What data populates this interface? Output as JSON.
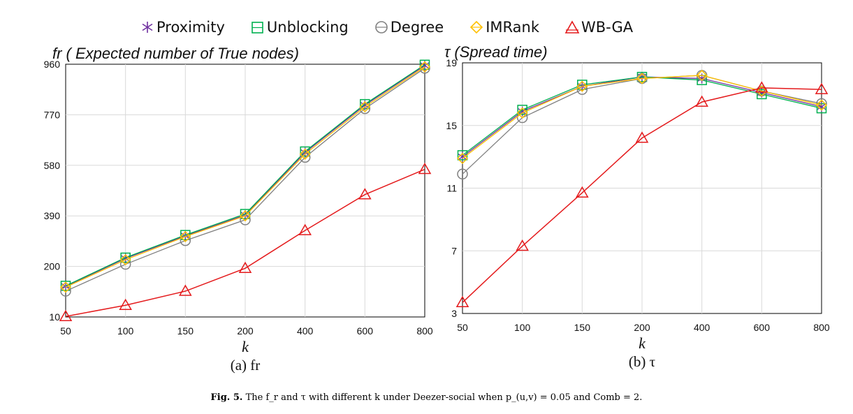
{
  "legend": [
    {
      "label": "Proximity",
      "color": "#7030a0",
      "marker": "asterisk"
    },
    {
      "label": "Unblocking",
      "color": "#00b050",
      "marker": "square"
    },
    {
      "label": "Degree",
      "color": "#808080",
      "marker": "circle"
    },
    {
      "label": "IMRank",
      "color": "#ffc000",
      "marker": "diamond"
    },
    {
      "label": "WB-GA",
      "color": "#e41a1c",
      "marker": "triangle"
    }
  ],
  "caption": {
    "fig_label": "Fig. 5.",
    "text": "The f_r and τ with different k under Deezer-social when p_(u,v) = 0.05 and Comb = 2."
  },
  "chart_data": [
    {
      "type": "line",
      "title": "fr ( Expected number of True nodes)",
      "sublabel": "(a) fr",
      "xlabel": "k",
      "categories": [
        "50",
        "100",
        "150",
        "200",
        "400",
        "600",
        "800"
      ],
      "yticks": [
        10,
        200,
        390,
        580,
        770,
        960
      ],
      "ylim": [
        10,
        960
      ],
      "grid": true,
      "series": [
        {
          "name": "Proximity",
          "values": [
            125,
            230,
            315,
            393,
            628,
            806,
            955
          ]
        },
        {
          "name": "Unblocking",
          "values": [
            127,
            233,
            318,
            397,
            632,
            810,
            958
          ]
        },
        {
          "name": "Degree",
          "values": [
            107,
            208,
            297,
            375,
            610,
            793,
            945
          ]
        },
        {
          "name": "IMRank",
          "values": [
            122,
            225,
            312,
            390,
            622,
            800,
            950
          ]
        },
        {
          "name": "WB-GA",
          "values": [
            12,
            54,
            107,
            193,
            335,
            470,
            565
          ]
        }
      ]
    },
    {
      "type": "line",
      "title": "τ (Spread time)",
      "sublabel": "(b) τ",
      "xlabel": "k",
      "categories": [
        "50",
        "100",
        "150",
        "200",
        "400",
        "600",
        "800"
      ],
      "yticks": [
        3,
        7,
        11,
        15,
        19
      ],
      "ylim": [
        3,
        19
      ],
      "grid": true,
      "series": [
        {
          "name": "Proximity",
          "values": [
            13.0,
            15.9,
            17.5,
            18.1,
            18.0,
            17.1,
            16.2
          ]
        },
        {
          "name": "Unblocking",
          "values": [
            13.1,
            16.0,
            17.6,
            18.1,
            17.9,
            17.0,
            16.1
          ]
        },
        {
          "name": "Degree",
          "values": [
            11.9,
            15.5,
            17.3,
            18.0,
            18.2,
            17.2,
            16.4
          ]
        },
        {
          "name": "IMRank",
          "values": [
            12.9,
            15.8,
            17.5,
            18.0,
            18.2,
            17.2,
            16.3
          ]
        },
        {
          "name": "WB-GA",
          "values": [
            3.7,
            7.3,
            10.7,
            14.2,
            16.5,
            17.4,
            17.3
          ]
        }
      ]
    }
  ]
}
